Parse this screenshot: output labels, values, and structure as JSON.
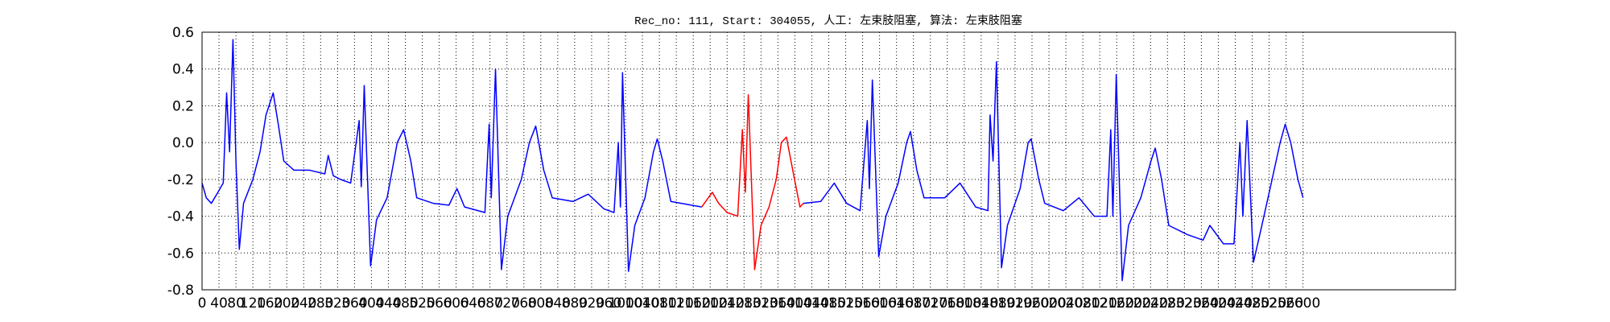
{
  "chart_data": {
    "type": "line",
    "title": "Rec_no: 111, Start: 304055, 人工: 左束肢阻塞, 算法: 左束肢阻塞",
    "xlim": [
      0,
      2960
    ],
    "xticks": [
      0,
      40,
      80,
      120,
      160,
      200,
      240,
      280,
      320,
      360,
      400,
      440,
      480,
      520,
      560,
      600,
      640,
      680,
      720,
      760,
      800,
      840,
      880,
      920,
      960,
      1000,
      1040,
      1080,
      1120,
      1160,
      1200,
      1240,
      1280,
      1320,
      1360,
      1400,
      1440,
      1480,
      1520,
      1560,
      1600,
      1640,
      1680,
      1720,
      1760,
      1800,
      1840,
      1880,
      1920,
      1960,
      2000,
      2040,
      2080,
      2120,
      2160,
      2200,
      2240,
      2280,
      2320,
      2360,
      2400,
      2440,
      2480,
      2520,
      2560,
      2600
    ],
    "ylim": [
      -0.8,
      0.6
    ],
    "yticks": [
      -0.8,
      -0.6,
      -0.4,
      -0.2,
      {
        "value": 0,
        "label": "0.0"
      },
      0.2,
      0.4,
      0.6
    ],
    "grid": true,
    "series": [
      {
        "color": "#0000ff",
        "x": [
          0,
          10,
          22,
          35,
          50,
          58,
          65,
          73,
          80,
          88,
          98,
          120,
          137,
          151,
          168,
          180,
          193,
          217,
          254,
          290,
          298,
          310,
          327,
          351,
          371,
          376,
          383,
          398,
          412,
          437,
          461,
          476,
          493,
          507,
          546,
          583,
          602,
          620,
          668,
          678,
          683,
          693,
          707,
          722,
          754,
          773,
          788,
          807,
          827,
          876,
          912,
          949,
          973,
          983,
          988,
          993,
          1007,
          1022,
          1046,
          1066,
          1075,
          1088,
          1107,
          1156,
          1180
        ],
        "values": [
          -0.22,
          -0.3,
          -0.33,
          -0.28,
          -0.22,
          0.27,
          -0.05,
          0.56,
          -0.1,
          -0.58,
          -0.33,
          -0.2,
          -0.05,
          0.15,
          0.27,
          0.1,
          -0.1,
          -0.15,
          -0.15,
          -0.17,
          -0.07,
          -0.18,
          -0.2,
          -0.22,
          0.12,
          -0.24,
          0.31,
          -0.67,
          -0.42,
          -0.3,
          0.0,
          0.07,
          -0.1,
          -0.3,
          -0.33,
          -0.34,
          -0.25,
          -0.35,
          -0.38,
          0.1,
          -0.3,
          0.4,
          -0.69,
          -0.4,
          -0.2,
          0.0,
          0.09,
          -0.15,
          -0.3,
          -0.32,
          -0.28,
          -0.36,
          -0.38,
          0.0,
          -0.35,
          0.38,
          -0.7,
          -0.45,
          -0.3,
          -0.05,
          0.02,
          -0.1,
          -0.32,
          -0.34,
          -0.35
        ]
      },
      {
        "color": "#ff0000",
        "x": [
          1180,
          1205,
          1220,
          1240,
          1265,
          1276,
          1283,
          1290,
          1305,
          1320,
          1339,
          1356,
          1368,
          1380,
          1395,
          1412,
          1420
        ],
        "values": [
          -0.35,
          -0.27,
          -0.33,
          -0.38,
          -0.4,
          0.07,
          -0.27,
          0.26,
          -0.69,
          -0.45,
          -0.35,
          -0.2,
          0.0,
          0.03,
          -0.15,
          -0.35,
          -0.33
        ]
      },
      {
        "color": "#0000ff",
        "x": [
          1420,
          1461,
          1493,
          1522,
          1554,
          1571,
          1576,
          1583,
          1598,
          1615,
          1644,
          1664,
          1673,
          1688,
          1705,
          1754,
          1790,
          1827,
          1856,
          1861,
          1868,
          1876,
          1888,
          1902,
          1932,
          1951,
          1958,
          1976,
          1990,
          2034,
          2071,
          2107,
          2137,
          2146,
          2151,
          2159,
          2173,
          2188,
          2217,
          2241,
          2251,
          2266,
          2283,
          2327,
          2364,
          2380,
          2412,
          2437,
          2451,
          2458,
          2468,
          2483,
          2498,
          2527,
          2546,
          2558,
          2571,
          2588,
          2600
        ],
        "values": [
          -0.33,
          -0.32,
          -0.22,
          -0.33,
          -0.37,
          0.12,
          -0.25,
          0.34,
          -0.62,
          -0.4,
          -0.22,
          0.0,
          0.06,
          -0.15,
          -0.3,
          -0.3,
          -0.22,
          -0.35,
          -0.37,
          0.15,
          -0.1,
          0.44,
          -0.68,
          -0.45,
          -0.25,
          0.0,
          0.02,
          -0.2,
          -0.33,
          -0.37,
          -0.3,
          -0.4,
          -0.4,
          0.07,
          -0.4,
          0.37,
          -0.75,
          -0.45,
          -0.3,
          -0.1,
          -0.03,
          -0.2,
          -0.45,
          -0.5,
          -0.53,
          -0.45,
          -0.55,
          -0.55,
          0.0,
          -0.4,
          0.12,
          -0.65,
          -0.5,
          -0.2,
          0.0,
          0.1,
          0.0,
          -0.2,
          -0.3
        ]
      }
    ]
  }
}
